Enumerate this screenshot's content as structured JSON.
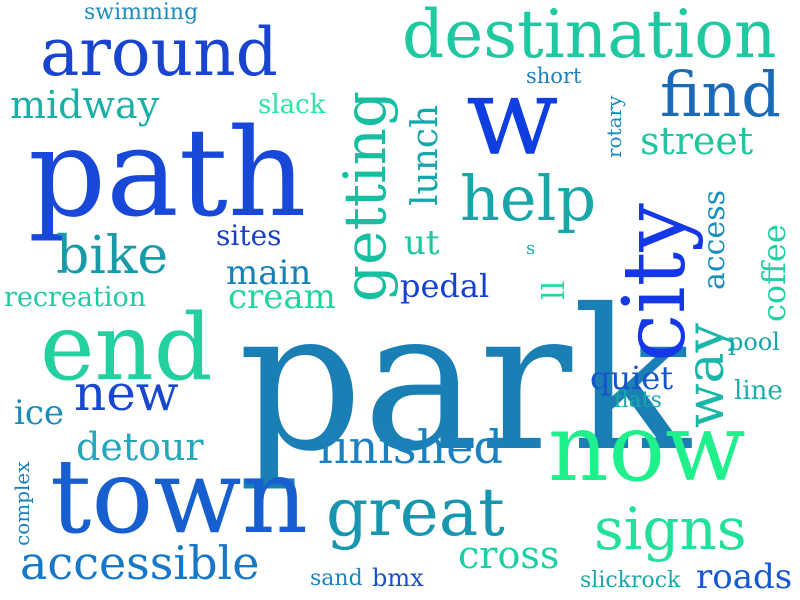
{
  "words": [
    {
      "text": "park",
      "color": "#1a7fb5"
    },
    {
      "text": "path",
      "color": "#1848d8"
    },
    {
      "text": "town",
      "color": "#175fcf"
    },
    {
      "text": "end",
      "color": "#22d0a0"
    },
    {
      "text": "now",
      "color": "#1ef08c"
    },
    {
      "text": "city",
      "color": "#1438e8"
    },
    {
      "text": "w",
      "color": "#0e3ee0"
    },
    {
      "text": "getting",
      "color": "#16bfa0"
    },
    {
      "text": "destination",
      "color": "#20c8a2"
    },
    {
      "text": "around",
      "color": "#1844d0"
    },
    {
      "text": "great",
      "color": "#1896b0"
    },
    {
      "text": "find",
      "color": "#1a6ab8"
    },
    {
      "text": "help",
      "color": "#18a6a8"
    },
    {
      "text": "signs",
      "color": "#24e09a"
    },
    {
      "text": "way",
      "color": "#1ab6a8"
    },
    {
      "text": "accessible",
      "color": "#1878c8"
    },
    {
      "text": "finished",
      "color": "#1a80c0"
    },
    {
      "text": "bike",
      "color": "#189aa8"
    },
    {
      "text": "new",
      "color": "#1848d0"
    },
    {
      "text": "cross",
      "color": "#1ad0a6"
    },
    {
      "text": "street",
      "color": "#20c6a0"
    },
    {
      "text": "midway",
      "color": "#1ab0a8"
    },
    {
      "text": "detour",
      "color": "#24a6bc"
    },
    {
      "text": "main",
      "color": "#1680b8"
    },
    {
      "text": "cream",
      "color": "#20d6a0"
    },
    {
      "text": "lunch",
      "color": "#14a8ac"
    },
    {
      "text": "recreation",
      "color": "#20c8a4"
    },
    {
      "text": "ice",
      "color": "#1a8ab8"
    },
    {
      "text": "coffee",
      "color": "#20d0a6"
    },
    {
      "text": "access",
      "color": "#1a8ec0"
    },
    {
      "text": "roads",
      "color": "#1658d0"
    },
    {
      "text": "pedal",
      "color": "#1640d0"
    },
    {
      "text": "quiet",
      "color": "#1456c8"
    },
    {
      "text": "sites",
      "color": "#1640c8"
    },
    {
      "text": "slack",
      "color": "#28e6a0"
    },
    {
      "text": "swimming",
      "color": "#1a8ec0"
    },
    {
      "text": "ut",
      "color": "#20c6a0"
    },
    {
      "text": "ll",
      "color": "#20d6a0"
    },
    {
      "text": "s",
      "color": "#1ab0a8"
    },
    {
      "text": "short",
      "color": "#1a80c0"
    },
    {
      "text": "rotary",
      "color": "#1a8ac0"
    },
    {
      "text": "pool",
      "color": "#18a6a8"
    },
    {
      "text": "line",
      "color": "#18b0a8"
    },
    {
      "text": "flats",
      "color": "#18a8a8"
    },
    {
      "text": "complex",
      "color": "#1a80c0"
    },
    {
      "text": "sand",
      "color": "#1a86c0"
    },
    {
      "text": "bmx",
      "color": "#1a50c8"
    },
    {
      "text": "slickrock",
      "color": "#18a8a8"
    }
  ]
}
